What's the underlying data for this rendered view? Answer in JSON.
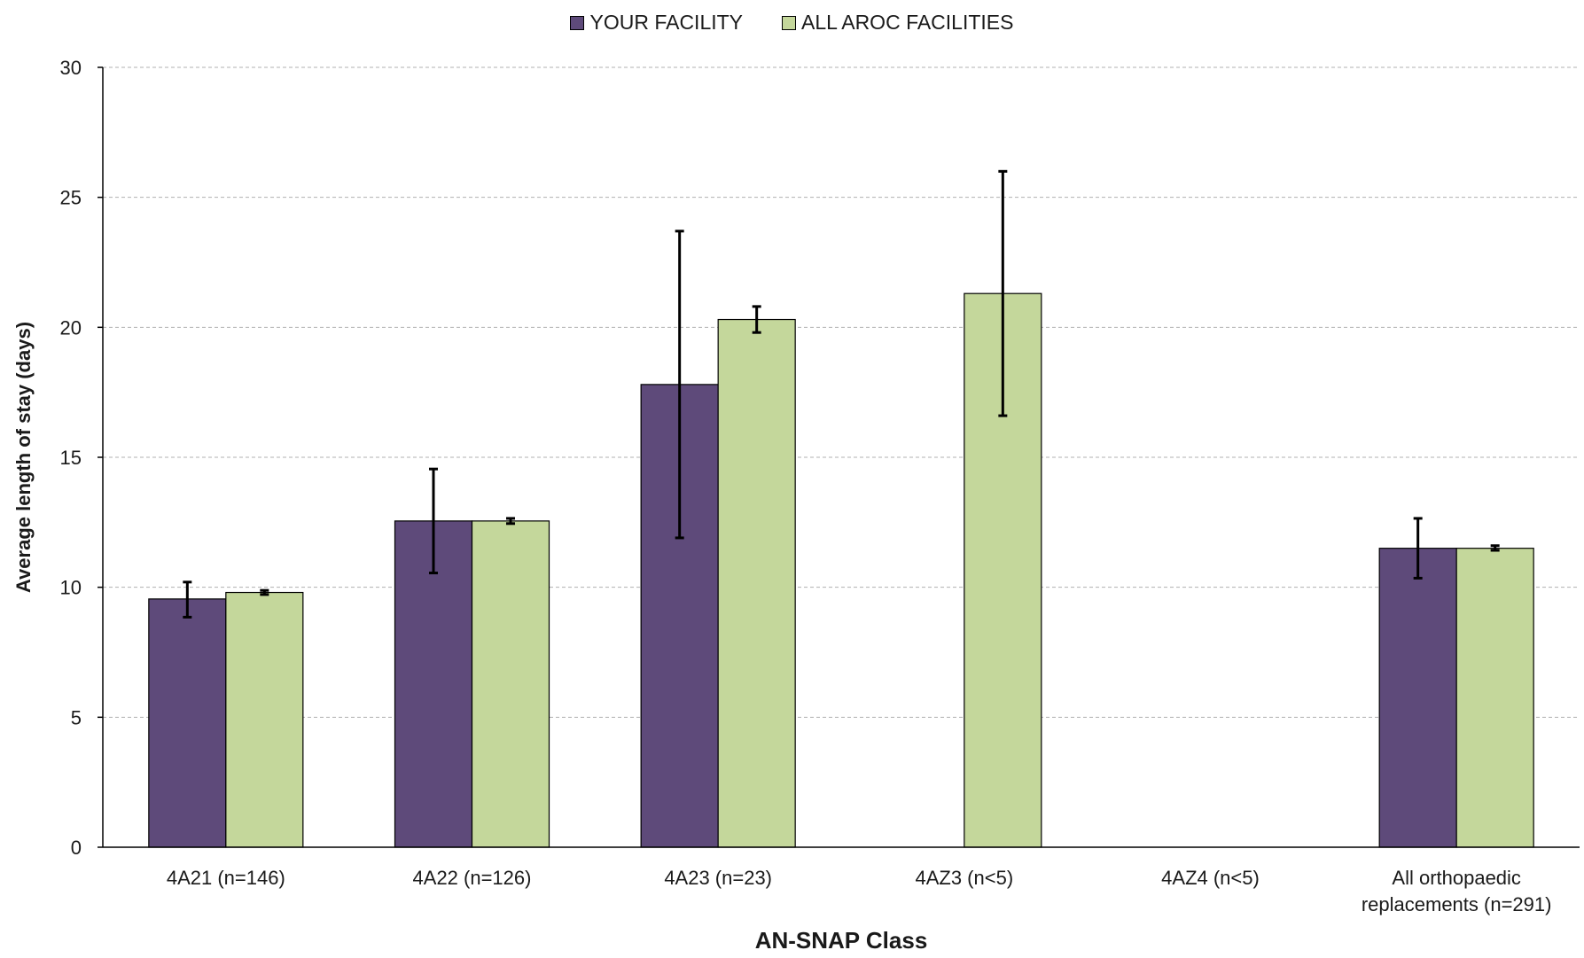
{
  "chart_data": {
    "type": "bar",
    "title": "",
    "xlabel": "AN-SNAP Class",
    "ylabel": "Average length of stay (days)",
    "ylim": [
      0,
      30
    ],
    "yticks": [
      0,
      5,
      10,
      15,
      20,
      25,
      30
    ],
    "grid": true,
    "legend_position": "top-center",
    "categories": [
      [
        "4A21 (n=146)"
      ],
      [
        "4A22 (n=126)"
      ],
      [
        "4A23 (n=23)"
      ],
      [
        "4AZ3 (n<5)"
      ],
      [
        "4AZ4 (n<5)"
      ],
      [
        "All orthopaedic",
        "replacements (n=291)"
      ]
    ],
    "series": [
      {
        "name": "YOUR FACILITY",
        "color": "#5e4a7a",
        "values": [
          9.55,
          12.55,
          17.8,
          null,
          null,
          11.5
        ],
        "error_low": [
          8.85,
          10.55,
          11.9,
          null,
          null,
          10.35
        ],
        "error_high": [
          10.2,
          14.55,
          23.7,
          null,
          null,
          12.65
        ]
      },
      {
        "name": "ALL AROC FACILITIES",
        "color": "#c4d79b",
        "values": [
          9.8,
          12.55,
          20.3,
          21.3,
          null,
          11.5
        ],
        "error_low": [
          9.72,
          12.45,
          19.8,
          16.6,
          null,
          11.42
        ],
        "error_high": [
          9.88,
          12.65,
          20.8,
          26.0,
          null,
          11.6
        ]
      }
    ]
  }
}
